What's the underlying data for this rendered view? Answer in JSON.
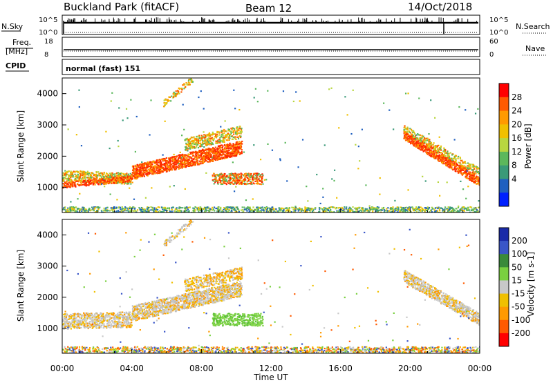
{
  "header": {
    "station": "Buckland Park (fitACF)",
    "beam": "Beam 12",
    "date": "14/Oct/2018"
  },
  "strip1": {
    "left_label": "N.Sky",
    "right_label": "N.Search",
    "left_ticks": [
      "10^5",
      "10^0"
    ],
    "right_ticks": [
      "10^5",
      "10^0"
    ]
  },
  "strip2": {
    "left_label_1": "Freq.",
    "left_label_2": "[MHz]",
    "right_label": "Nave",
    "left_ticks": [
      "18",
      "8"
    ],
    "right_ticks": [
      "60",
      "0"
    ]
  },
  "strip3": {
    "left_label": "CPID",
    "mode_text": "normal (fast) 151"
  },
  "chart_data": [
    {
      "type": "heatmap",
      "ylabel": "Slant Range [km]",
      "y_ticks": [
        "4000",
        "3000",
        "2000",
        "1000"
      ],
      "y_tick_values": [
        4000,
        3000,
        2000,
        1000
      ],
      "ylim": [
        200,
        4500
      ],
      "xlim": [
        0,
        24
      ],
      "colorbar": {
        "label": "Power [dB]",
        "labels": [
          "28",
          "24",
          "20",
          "16",
          "12",
          "8",
          "4"
        ],
        "colors": [
          "#ff0000",
          "#ff5a00",
          "#ff9a00",
          "#f0c000",
          "#b8d640",
          "#5cb85c",
          "#3a9a78",
          "#2060c0",
          "#0020ff"
        ]
      }
    },
    {
      "type": "heatmap",
      "ylabel": "Slant Range [km]",
      "y_ticks": [
        "4000",
        "3000",
        "2000",
        "1000"
      ],
      "y_tick_values": [
        4000,
        3000,
        2000,
        1000
      ],
      "ylim": [
        200,
        4500
      ],
      "xlim": [
        0,
        24
      ],
      "xlabel": "Time UT",
      "x_ticks": [
        "00:00",
        "04:00",
        "08:00",
        "12:00",
        "16:00",
        "20:00",
        "00:00"
      ],
      "x_tick_values": [
        0,
        4,
        8,
        12,
        16,
        20,
        24
      ],
      "colorbar": {
        "label": "Velocity [m s-1]",
        "labels": [
          "200",
          "100",
          "50",
          "15",
          "-15",
          "-50",
          "-100",
          "-200"
        ],
        "colors": [
          "#1a2aa8",
          "#3a56c8",
          "#3a8a3a",
          "#7ad040",
          "#c8c8c8",
          "#f0c000",
          "#ff9a00",
          "#ff5a00",
          "#ff0000"
        ]
      }
    }
  ]
}
